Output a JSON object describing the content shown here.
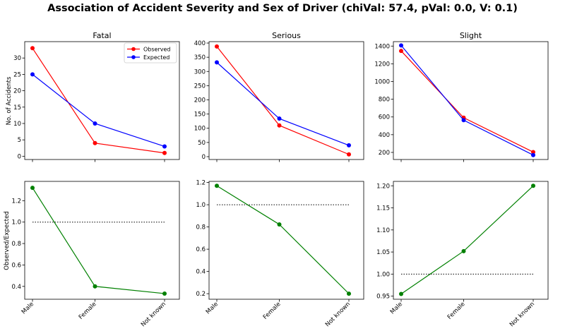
{
  "chart_data": {
    "type": "line",
    "title": "Association of Accident Severity and Sex of Driver (chiVal: 57.4, pVal: 0.0, V: 0.1)",
    "categories": [
      "Male",
      "Female",
      "Not known"
    ],
    "colors": {
      "observed": "#ff0000",
      "expected": "#0000ff",
      "ratio": "#008000",
      "reference": "#000000"
    },
    "legend": {
      "placement": "top-right",
      "entries": [
        "Observed",
        "Expected"
      ]
    },
    "top_row_ylabel": "No. of Accidents",
    "bottom_row_ylabel": "Observed/Expected",
    "panels": [
      {
        "title": "Fatal",
        "counts": {
          "ylim": [
            -1,
            35
          ],
          "yticks": [
            0,
            5,
            10,
            15,
            20,
            25,
            30
          ],
          "series": [
            {
              "name": "Observed",
              "values": [
                33,
                4,
                1
              ]
            },
            {
              "name": "Expected",
              "values": [
                25,
                10,
                3
              ]
            }
          ]
        },
        "ratio": {
          "ylim": [
            0.28,
            1.38
          ],
          "yticks": [
            "0.4",
            "0.6",
            "0.8",
            "1.0",
            "1.2"
          ],
          "values": [
            1.32,
            0.4,
            0.333
          ],
          "reference": 1.0
        }
      },
      {
        "title": "Serious",
        "counts": {
          "ylim": [
            -10,
            405
          ],
          "yticks": [
            0,
            50,
            100,
            150,
            200,
            250,
            300,
            350,
            400
          ],
          "series": [
            {
              "name": "Observed",
              "values": [
                388,
                110,
                8
              ]
            },
            {
              "name": "Expected",
              "values": [
                332,
                134,
                40
              ]
            }
          ]
        },
        "ratio": {
          "ylim": [
            0.15,
            1.21
          ],
          "yticks": [
            "0.2",
            "0.4",
            "0.6",
            "0.8",
            "1.0",
            "1.2"
          ],
          "values": [
            1.17,
            0.823,
            0.2
          ],
          "reference": 1.0
        }
      },
      {
        "title": "Slight",
        "counts": {
          "ylim": [
            120,
            1450
          ],
          "yticks": [
            200,
            400,
            600,
            800,
            1000,
            1200,
            1400
          ],
          "series": [
            {
              "name": "Observed",
              "values": [
                1345,
                592,
                204
              ]
            },
            {
              "name": "Expected",
              "values": [
                1407,
                564,
                170
              ]
            }
          ]
        },
        "ratio": {
          "ylim": [
            0.943,
            1.21
          ],
          "yticks": [
            "0.95",
            "1.00",
            "1.05",
            "1.10",
            "1.15",
            "1.20"
          ],
          "values": [
            0.955,
            1.052,
            1.2
          ],
          "reference": 1.0
        }
      }
    ]
  }
}
